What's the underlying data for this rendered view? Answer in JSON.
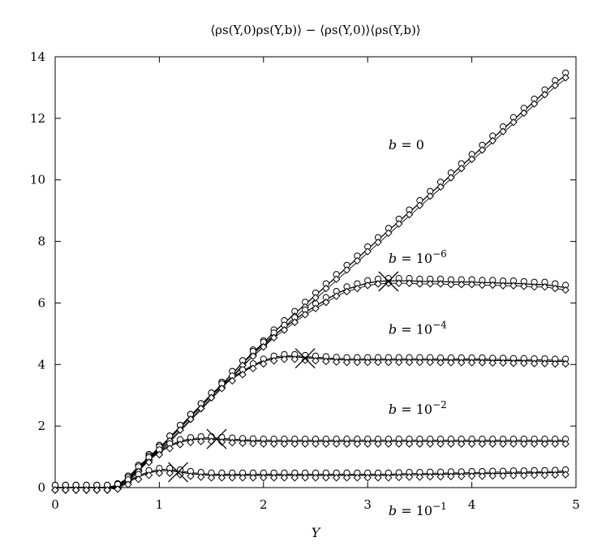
{
  "chart_data": {
    "type": "line",
    "title": "⟨ρs(Y,0)ρs(Y,b)⟩ − ⟨ρs(Y,0)⟩⟨ρs(Y,b)⟩",
    "xlabel": "Y",
    "ylabel": "",
    "xlim": [
      0,
      5
    ],
    "ylim": [
      0,
      14
    ],
    "grid": false,
    "legend": "none",
    "xticks": [
      0,
      1,
      2,
      3,
      4,
      5
    ],
    "yticks": [
      0,
      2,
      4,
      6,
      8,
      10,
      12,
      14
    ],
    "x": [
      0,
      0.1,
      0.2,
      0.3,
      0.4,
      0.5,
      0.6,
      0.7,
      0.8,
      0.9,
      1.0,
      1.1,
      1.2,
      1.3,
      1.4,
      1.5,
      1.6,
      1.7,
      1.8,
      1.9,
      2.0,
      2.1,
      2.2,
      2.3,
      2.4,
      2.5,
      2.6,
      2.7,
      2.8,
      2.9,
      3.0,
      3.1,
      3.2,
      3.3,
      3.4,
      3.5,
      3.6,
      3.7,
      3.8,
      3.9,
      4.0,
      4.1,
      4.2,
      4.3,
      4.4,
      4.5,
      4.6,
      4.7,
      4.8,
      4.9
    ],
    "series": [
      {
        "name": "b = 0",
        "values": [
          0,
          0,
          0,
          0,
          0,
          0,
          0.05,
          0.3,
          0.65,
          1.0,
          1.3,
          1.6,
          1.95,
          2.3,
          2.65,
          3.0,
          3.35,
          3.7,
          4.05,
          4.4,
          4.7,
          5.05,
          5.35,
          5.65,
          5.95,
          6.25,
          6.55,
          6.85,
          7.15,
          7.45,
          7.75,
          8.05,
          8.35,
          8.65,
          8.95,
          9.25,
          9.55,
          9.85,
          10.15,
          10.45,
          10.75,
          11.05,
          11.35,
          11.65,
          11.95,
          12.25,
          12.55,
          12.85,
          13.15,
          13.4
        ]
      },
      {
        "name": "b = 10⁻⁶",
        "values": [
          0,
          0,
          0,
          0,
          0,
          0,
          0.05,
          0.3,
          0.65,
          1.0,
          1.3,
          1.6,
          1.95,
          2.3,
          2.65,
          3.0,
          3.35,
          3.7,
          4.05,
          4.35,
          4.65,
          4.95,
          5.2,
          5.45,
          5.7,
          5.9,
          6.1,
          6.3,
          6.45,
          6.55,
          6.65,
          6.7,
          6.72,
          6.72,
          6.72,
          6.7,
          6.7,
          6.7,
          6.68,
          6.68,
          6.68,
          6.66,
          6.66,
          6.64,
          6.64,
          6.62,
          6.6,
          6.6,
          6.55,
          6.5
        ]
      },
      {
        "name": "b = 10⁻⁴",
        "values": [
          0,
          0,
          0,
          0,
          0,
          0,
          0.05,
          0.3,
          0.65,
          0.95,
          1.25,
          1.6,
          1.95,
          2.3,
          2.65,
          3.0,
          3.3,
          3.55,
          3.75,
          3.95,
          4.1,
          4.2,
          4.25,
          4.25,
          4.22,
          4.2,
          4.18,
          4.16,
          4.15,
          4.15,
          4.15,
          4.15,
          4.15,
          4.15,
          4.15,
          4.15,
          4.15,
          4.14,
          4.14,
          4.14,
          4.14,
          4.14,
          4.13,
          4.13,
          4.12,
          4.12,
          4.11,
          4.11,
          4.1,
          4.1
        ]
      },
      {
        "name": "b = 10⁻²",
        "values": [
          0,
          0,
          0,
          0,
          0,
          0,
          0.05,
          0.25,
          0.6,
          0.9,
          1.15,
          1.35,
          1.48,
          1.55,
          1.58,
          1.58,
          1.56,
          1.54,
          1.52,
          1.51,
          1.5,
          1.5,
          1.5,
          1.5,
          1.5,
          1.5,
          1.5,
          1.5,
          1.5,
          1.5,
          1.5,
          1.5,
          1.5,
          1.5,
          1.5,
          1.5,
          1.5,
          1.5,
          1.5,
          1.5,
          1.5,
          1.5,
          1.5,
          1.5,
          1.5,
          1.5,
          1.5,
          1.5,
          1.5,
          1.5
        ]
      },
      {
        "name": "b = 10⁻¹",
        "values": [
          0,
          0,
          0,
          0,
          0,
          0,
          0.03,
          0.18,
          0.35,
          0.48,
          0.55,
          0.55,
          0.5,
          0.45,
          0.42,
          0.4,
          0.4,
          0.4,
          0.4,
          0.4,
          0.4,
          0.4,
          0.4,
          0.4,
          0.4,
          0.4,
          0.4,
          0.4,
          0.4,
          0.4,
          0.4,
          0.4,
          0.4,
          0.41,
          0.42,
          0.42,
          0.43,
          0.43,
          0.44,
          0.44,
          0.45,
          0.45,
          0.46,
          0.46,
          0.47,
          0.47,
          0.48,
          0.48,
          0.49,
          0.5
        ]
      }
    ],
    "crosses": [
      {
        "x": 3.2,
        "y": 6.7
      },
      {
        "x": 2.4,
        "y": 4.2
      },
      {
        "x": 1.55,
        "y": 1.58
      },
      {
        "x": 1.18,
        "y": 0.5
      }
    ],
    "annotations": [
      {
        "base": "b = 0",
        "exp": "",
        "x": 3.2,
        "y": 11.0
      },
      {
        "base": "b = 10",
        "exp": "−6",
        "x": 3.2,
        "y": 7.3
      },
      {
        "base": "b = 10",
        "exp": "−4",
        "x": 3.2,
        "y": 5.0
      },
      {
        "base": "b = 10",
        "exp": "−2",
        "x": 3.2,
        "y": 2.4
      },
      {
        "base": "b = 10",
        "exp": "−1",
        "x": 3.2,
        "y": -0.9
      }
    ]
  }
}
